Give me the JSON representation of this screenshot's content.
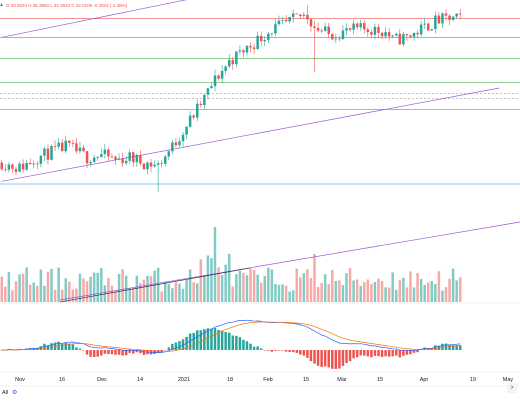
{
  "legend": {
    "ohlc_text": "O 33.5023  H 35.3960  L 32.3642  C 32.6105  -0.4915 (-1.48%)",
    "symbol_glyph": "▴",
    "symbol_glyph_color": "#26a69a",
    "change_color": "#ef5350"
  },
  "time_axis": {
    "labels": [
      "Nov",
      "16",
      "Dec",
      "14",
      "2021",
      "18",
      "Feb",
      "15",
      "Mar",
      "15",
      "Apr",
      "19",
      "May"
    ]
  },
  "range_button": "All",
  "settings_icon": "gear-icon",
  "scroll_icon": "chevron-right-icon",
  "colors": {
    "up": "#26a69a",
    "down": "#ef5350",
    "volume_up": "#80cbc4",
    "volume_down": "#f7a9a7",
    "channel_line": "#9c58d4",
    "horizontal_red": "#ef5350",
    "horizontal_green": "#4caf50",
    "horizontal_blue": "#2196f3",
    "macd_line": "#2962ff",
    "signal_line": "#ff6d00"
  },
  "chart_data": [
    {
      "type": "candlestick",
      "pane": "price",
      "x_unit": "candle index (daily)",
      "candles": [],
      "horizontal_levels": [],
      "trend_lines": []
    },
    {
      "type": "bar",
      "pane": "volume",
      "values": []
    },
    {
      "type": "macd",
      "pane": "oscillator",
      "histogram": [],
      "macd": [],
      "signal": []
    }
  ]
}
